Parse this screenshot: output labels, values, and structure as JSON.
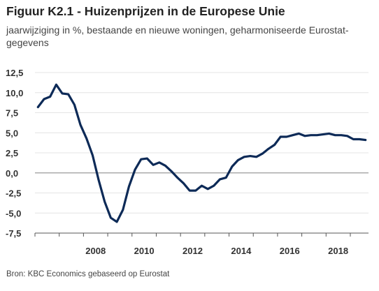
{
  "chart_data": {
    "type": "line",
    "title": "Figuur K2.1 - Huizenprijzen in de Europese Unie",
    "subtitle": "jaarwijziging in %, bestaande en nieuwe woningen, geharmoniseerde Eurostat-gegevens",
    "source": "Bron: KBC Economics gebaseerd op Eurostat",
    "ylim": [
      -7.5,
      12.5
    ],
    "y_ticks": [
      "12,5",
      "10,0",
      "7,5",
      "5,0",
      "2,5",
      "0,0",
      "-2,5",
      "-5,0",
      "-7,5"
    ],
    "y_tick_values": [
      12.5,
      10.0,
      7.5,
      5.0,
      2.5,
      0.0,
      -2.5,
      -5.0,
      -7.5
    ],
    "xlim": [
      2006.0,
      2019.75
    ],
    "x_ticks": [
      "2008",
      "2010",
      "2012",
      "2014",
      "2016",
      "2018"
    ],
    "x_tick_values": [
      2008,
      2010,
      2012,
      2014,
      2016,
      2018
    ],
    "grid": true,
    "color": "#0d2a57",
    "series": [
      {
        "x": [
          2006.125,
          2006.375,
          2006.625,
          2006.875,
          2007.125,
          2007.375,
          2007.625,
          2007.875,
          2008.125,
          2008.375,
          2008.625,
          2008.875,
          2009.125,
          2009.375,
          2009.625,
          2009.875,
          2010.125,
          2010.375,
          2010.625,
          2010.875,
          2011.125,
          2011.375,
          2011.625,
          2011.875,
          2012.125,
          2012.375,
          2012.625,
          2012.875,
          2013.125,
          2013.375,
          2013.625,
          2013.875,
          2014.125,
          2014.375,
          2014.625,
          2014.875,
          2015.125,
          2015.375,
          2015.625,
          2015.875,
          2016.125,
          2016.375,
          2016.625,
          2016.875,
          2017.125,
          2017.375,
          2017.625,
          2017.875,
          2018.125,
          2018.375,
          2018.625,
          2018.875,
          2019.125,
          2019.375,
          2019.625
        ],
        "values": [
          8.2,
          9.2,
          9.5,
          11.0,
          9.9,
          9.8,
          8.5,
          6.0,
          4.3,
          2.2,
          -0.9,
          -3.6,
          -5.6,
          -6.1,
          -4.6,
          -1.7,
          0.4,
          1.7,
          1.8,
          1.0,
          1.3,
          0.9,
          0.2,
          -0.6,
          -1.3,
          -2.2,
          -2.2,
          -1.6,
          -2.0,
          -1.6,
          -0.8,
          -0.6,
          0.8,
          1.6,
          2.0,
          2.1,
          2.0,
          2.4,
          3.0,
          3.5,
          4.5,
          4.5,
          4.7,
          4.9,
          4.6,
          4.7,
          4.7,
          4.8,
          4.9,
          4.7,
          4.7,
          4.6,
          4.2,
          4.2,
          4.1
        ]
      }
    ]
  }
}
